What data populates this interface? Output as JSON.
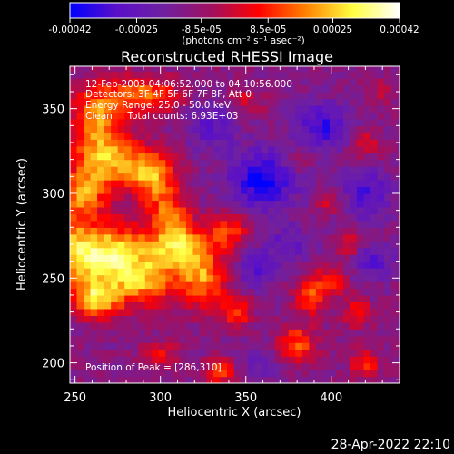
{
  "chart_data": {
    "type": "heatmap",
    "title": "Reconstructed RHESSI Image",
    "xlabel": "Heliocentric X (arcsec)",
    "ylabel": "Heliocentric Y (arcsec)",
    "xlim": [
      247,
      440
    ],
    "ylim": [
      188,
      375
    ],
    "x_ticks": [
      250,
      300,
      350,
      400
    ],
    "y_ticks": [
      200,
      250,
      300,
      350
    ],
    "x_tick_labels": [
      "250",
      "300",
      "350",
      "400"
    ],
    "y_tick_labels": [
      "200",
      "250",
      "300",
      "350"
    ],
    "colorbar": {
      "range": [
        -0.00042,
        0.00042
      ],
      "tick_values": [
        -0.00042,
        -0.00025,
        -8.5e-05,
        8.5e-05,
        0.00025,
        0.00042
      ],
      "tick_labels": [
        "-0.00042",
        "-0.00025",
        "-8.5e-05",
        "8.5e-05",
        "0.00025",
        "0.00042"
      ],
      "unit_label": "(photons cm⁻² s⁻¹ asec⁻²)",
      "colors": [
        "#0000ff",
        "#5a10c8",
        "#7020a0",
        "#a01060",
        "#ff0000",
        "#ff8000",
        "#ffff40",
        "#ffffff"
      ]
    },
    "annotations": [
      "12-Feb-2003 04:06:52.000 to 04:10:56.000",
      "Detectors: 3F 4F 5F 6F 7F 8F, Att 0",
      "Energy Range: 25.0 - 50.0 keV",
      "Clean     Total counts: 6.93E+03"
    ],
    "peak_label": "Position of Peak = [286,310]",
    "sources": [
      {
        "x": 262,
        "y": 345,
        "value": 0.0003,
        "sx": 10,
        "sy": 14
      },
      {
        "x": 290,
        "y": 358,
        "value": 0.00028,
        "sx": 14,
        "sy": 8
      },
      {
        "x": 270,
        "y": 320,
        "value": 0.00032,
        "sx": 14,
        "sy": 10
      },
      {
        "x": 255,
        "y": 300,
        "value": 0.0003,
        "sx": 10,
        "sy": 10
      },
      {
        "x": 295,
        "y": 310,
        "value": 0.00034,
        "sx": 10,
        "sy": 10
      },
      {
        "x": 305,
        "y": 290,
        "value": 0.00022,
        "sx": 8,
        "sy": 8
      },
      {
        "x": 270,
        "y": 265,
        "value": 0.00042,
        "sx": 16,
        "sy": 12
      },
      {
        "x": 310,
        "y": 270,
        "value": 0.00038,
        "sx": 12,
        "sy": 10
      },
      {
        "x": 325,
        "y": 250,
        "value": 0.0003,
        "sx": 10,
        "sy": 12
      },
      {
        "x": 290,
        "y": 248,
        "value": 0.0003,
        "sx": 14,
        "sy": 10
      },
      {
        "x": 262,
        "y": 238,
        "value": 0.00036,
        "sx": 10,
        "sy": 8
      },
      {
        "x": 250,
        "y": 265,
        "value": 0.00024,
        "sx": 8,
        "sy": 14
      },
      {
        "x": 340,
        "y": 278,
        "value": 0.00022,
        "sx": 8,
        "sy": 8
      },
      {
        "x": 345,
        "y": 230,
        "value": 0.00024,
        "sx": 6,
        "sy": 6
      },
      {
        "x": 388,
        "y": 240,
        "value": 0.00026,
        "sx": 6,
        "sy": 8
      },
      {
        "x": 400,
        "y": 248,
        "value": 0.0002,
        "sx": 6,
        "sy": 6
      },
      {
        "x": 380,
        "y": 215,
        "value": 0.0002,
        "sx": 8,
        "sy": 6
      },
      {
        "x": 415,
        "y": 230,
        "value": 0.00018,
        "sx": 6,
        "sy": 6
      },
      {
        "x": 420,
        "y": 200,
        "value": 0.00022,
        "sx": 6,
        "sy": 6
      },
      {
        "x": 410,
        "y": 270,
        "value": 0.00016,
        "sx": 5,
        "sy": 5
      },
      {
        "x": 380,
        "y": 205,
        "value": 0.00016,
        "sx": 8,
        "sy": 5
      },
      {
        "x": 335,
        "y": 195,
        "value": 0.00024,
        "sx": 6,
        "sy": 5
      },
      {
        "x": 300,
        "y": 205,
        "value": 0.00016,
        "sx": 8,
        "sy": 5
      },
      {
        "x": 420,
        "y": 330,
        "value": 0.00016,
        "sx": 6,
        "sy": 6
      },
      {
        "x": 350,
        "y": 355,
        "value": 0.00012,
        "sx": 8,
        "sy": 6
      },
      {
        "x": 380,
        "y": 320,
        "value": 0.0001,
        "sx": 6,
        "sy": 6
      },
      {
        "x": 400,
        "y": 295,
        "value": 0.00012,
        "sx": 6,
        "sy": 5
      },
      {
        "x": 430,
        "y": 360,
        "value": 0.0001,
        "sx": 6,
        "sy": 6
      },
      {
        "x": 360,
        "y": 308,
        "value": -0.0003,
        "sx": 14,
        "sy": 12
      },
      {
        "x": 395,
        "y": 340,
        "value": -0.00022,
        "sx": 12,
        "sy": 10
      },
      {
        "x": 420,
        "y": 300,
        "value": -0.0002,
        "sx": 10,
        "sy": 10
      },
      {
        "x": 330,
        "y": 340,
        "value": -0.00016,
        "sx": 10,
        "sy": 10
      },
      {
        "x": 375,
        "y": 270,
        "value": -0.00014,
        "sx": 10,
        "sy": 8
      },
      {
        "x": 355,
        "y": 255,
        "value": -0.00016,
        "sx": 8,
        "sy": 8
      },
      {
        "x": 425,
        "y": 260,
        "value": -0.00016,
        "sx": 8,
        "sy": 8
      },
      {
        "x": 360,
        "y": 200,
        "value": -0.00012,
        "sx": 8,
        "sy": 8
      }
    ]
  },
  "footer": {
    "timestamp": "28-Apr-2022 22:10"
  }
}
